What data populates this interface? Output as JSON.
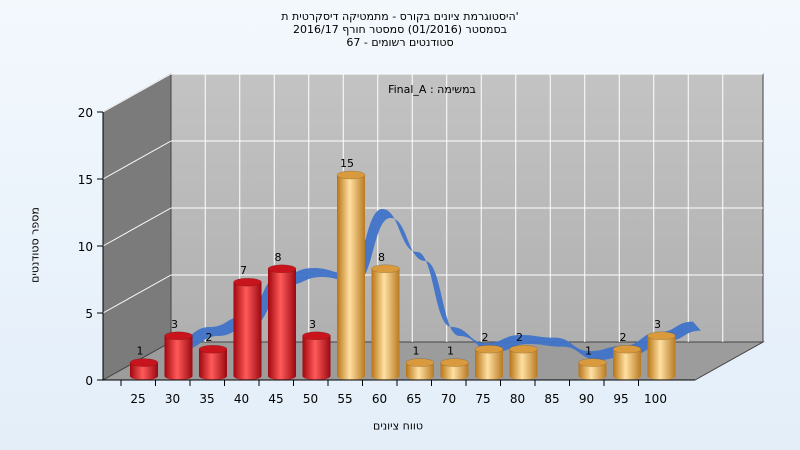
{
  "title_lines": [
    "היסטוגרמת ציונים בקורס - מתמטיקה דיסקרטית ת'",
    "בסמסטר  (01/2016)  סמסטר חורף 2016/17",
    "סטודנטים רשומים - 67"
  ],
  "colors": {
    "background": "#eef5fc",
    "fail_bar": "#e8222a",
    "pass_bar": "#f0b04a",
    "curve": "#3f73c8",
    "curve_shadow": "#666666",
    "plot_back": "#b8b8b8",
    "left_wall": "#7b7b7b",
    "floor": "#9c9c9c"
  },
  "chart_data": {
    "type": "bar",
    "title": "היסטוגרמת ציונים בקורס - מתמטיקה דיסקרטית ת'",
    "annotation": "Final_A : במשימה",
    "xlabel": "טווח ציונים",
    "ylabel": "מספר סטודנטים",
    "ylim": [
      0,
      20
    ],
    "yticks": [
      0,
      5,
      10,
      15,
      20
    ],
    "categories": [
      "25",
      "30",
      "35",
      "40",
      "45",
      "50",
      "55",
      "60",
      "65",
      "70",
      "75",
      "80",
      "85",
      "90",
      "95",
      "100"
    ],
    "values": [
      1,
      3,
      2,
      7,
      8,
      3,
      15,
      8,
      1,
      1,
      2,
      2,
      0,
      1,
      2,
      3
    ],
    "bar_groups": [
      "fail",
      "fail",
      "fail",
      "fail",
      "fail",
      "fail",
      "pass",
      "pass",
      "pass",
      "pass",
      "pass",
      "pass",
      "pass",
      "pass",
      "pass",
      "pass"
    ],
    "curve": "smoothed distribution ribbon",
    "grid": true
  }
}
